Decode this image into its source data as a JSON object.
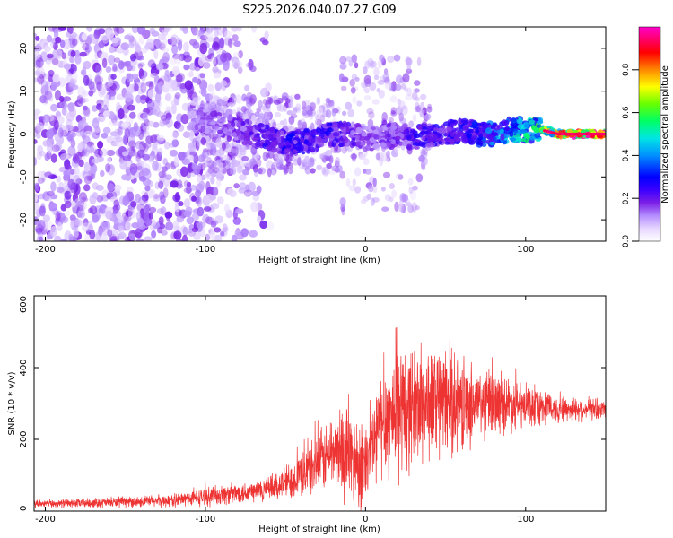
{
  "title": "S225.2026.040.07.27.G09",
  "colors": {
    "line": "#ee3333",
    "axis": "#000000",
    "background": "#ffffff",
    "noise_purple": "#7b1fe6",
    "colormap": [
      "#ffffff",
      "#e6d5ff",
      "#b48cff",
      "#7b1fe6",
      "#3a00ff",
      "#0000ff",
      "#0090ff",
      "#00e5e5",
      "#00ff66",
      "#66ff00",
      "#ffff00",
      "#ff8800",
      "#ff0000",
      "#ff0066",
      "#ff00cc"
    ]
  },
  "chart_data": [
    {
      "type": "heatmap",
      "title": "S225.2026.040.07.27.G09",
      "xlabel": "Height of straight line (km)",
      "ylabel": "Frequency (Hz)",
      "xlim": [
        -207,
        150
      ],
      "ylim": [
        -25,
        25
      ],
      "xticks": [
        -200,
        -100,
        0,
        100
      ],
      "yticks": [
        -20,
        -10,
        0,
        10,
        20
      ],
      "colorbar": {
        "label": "Normalized spectral amplitude",
        "range": [
          0.0,
          1.0
        ],
        "ticks": [
          "0.0",
          "0.2",
          "0.4",
          "0.6",
          "0.8"
        ],
        "tick_values": [
          0.0,
          0.2,
          0.4,
          0.6,
          0.8
        ]
      },
      "signal_ridge": {
        "description": "Dominant spectral ridge near 0 Hz",
        "x": [
          -110,
          -100,
          -90,
          -80,
          -70,
          -60,
          -50,
          -40,
          -30,
          -20,
          -10,
          0,
          10,
          20,
          30,
          40,
          50,
          60,
          70,
          80,
          90,
          100,
          110,
          120,
          130,
          140,
          150
        ],
        "frequency_hz": [
          4,
          3,
          2,
          1,
          0,
          -1,
          -2,
          -2,
          -1,
          0,
          0,
          -1,
          -1,
          0,
          -1,
          0,
          0,
          1,
          0,
          0,
          1,
          1,
          1,
          0,
          0,
          0,
          0
        ],
        "amplitude": [
          0.15,
          0.18,
          0.2,
          0.22,
          0.25,
          0.3,
          0.32,
          0.3,
          0.28,
          0.3,
          0.25,
          0.2,
          0.22,
          0.25,
          0.28,
          0.3,
          0.3,
          0.32,
          0.35,
          0.4,
          0.45,
          0.5,
          0.6,
          0.8,
          0.9,
          0.92,
          0.9
        ]
      }
    },
    {
      "type": "line",
      "xlabel": "Height of straight line (km)",
      "ylabel": "SNR (10 * v/v)",
      "xlim": [
        -207,
        150
      ],
      "ylim": [
        0,
        600
      ],
      "xticks": [
        -200,
        -100,
        0,
        100
      ],
      "yticks": [
        0,
        200,
        400,
        600
      ],
      "envelope": {
        "x": [
          -207,
          -180,
          -150,
          -120,
          -100,
          -80,
          -60,
          -45,
          -30,
          -20,
          -10,
          0,
          10,
          20,
          30,
          40,
          50,
          60,
          70,
          80,
          90,
          100,
          110,
          120,
          130,
          140,
          150
        ],
        "mean": [
          20,
          22,
          25,
          30,
          40,
          50,
          60,
          90,
          130,
          170,
          160,
          120,
          250,
          280,
          290,
          300,
          300,
          300,
          300,
          300,
          300,
          290,
          290,
          285,
          285,
          285,
          285
        ],
        "spread": [
          10,
          12,
          14,
          18,
          25,
          30,
          35,
          55,
          80,
          110,
          140,
          120,
          160,
          180,
          170,
          160,
          150,
          130,
          110,
          90,
          75,
          60,
          50,
          40,
          35,
          30,
          30
        ]
      }
    }
  ]
}
